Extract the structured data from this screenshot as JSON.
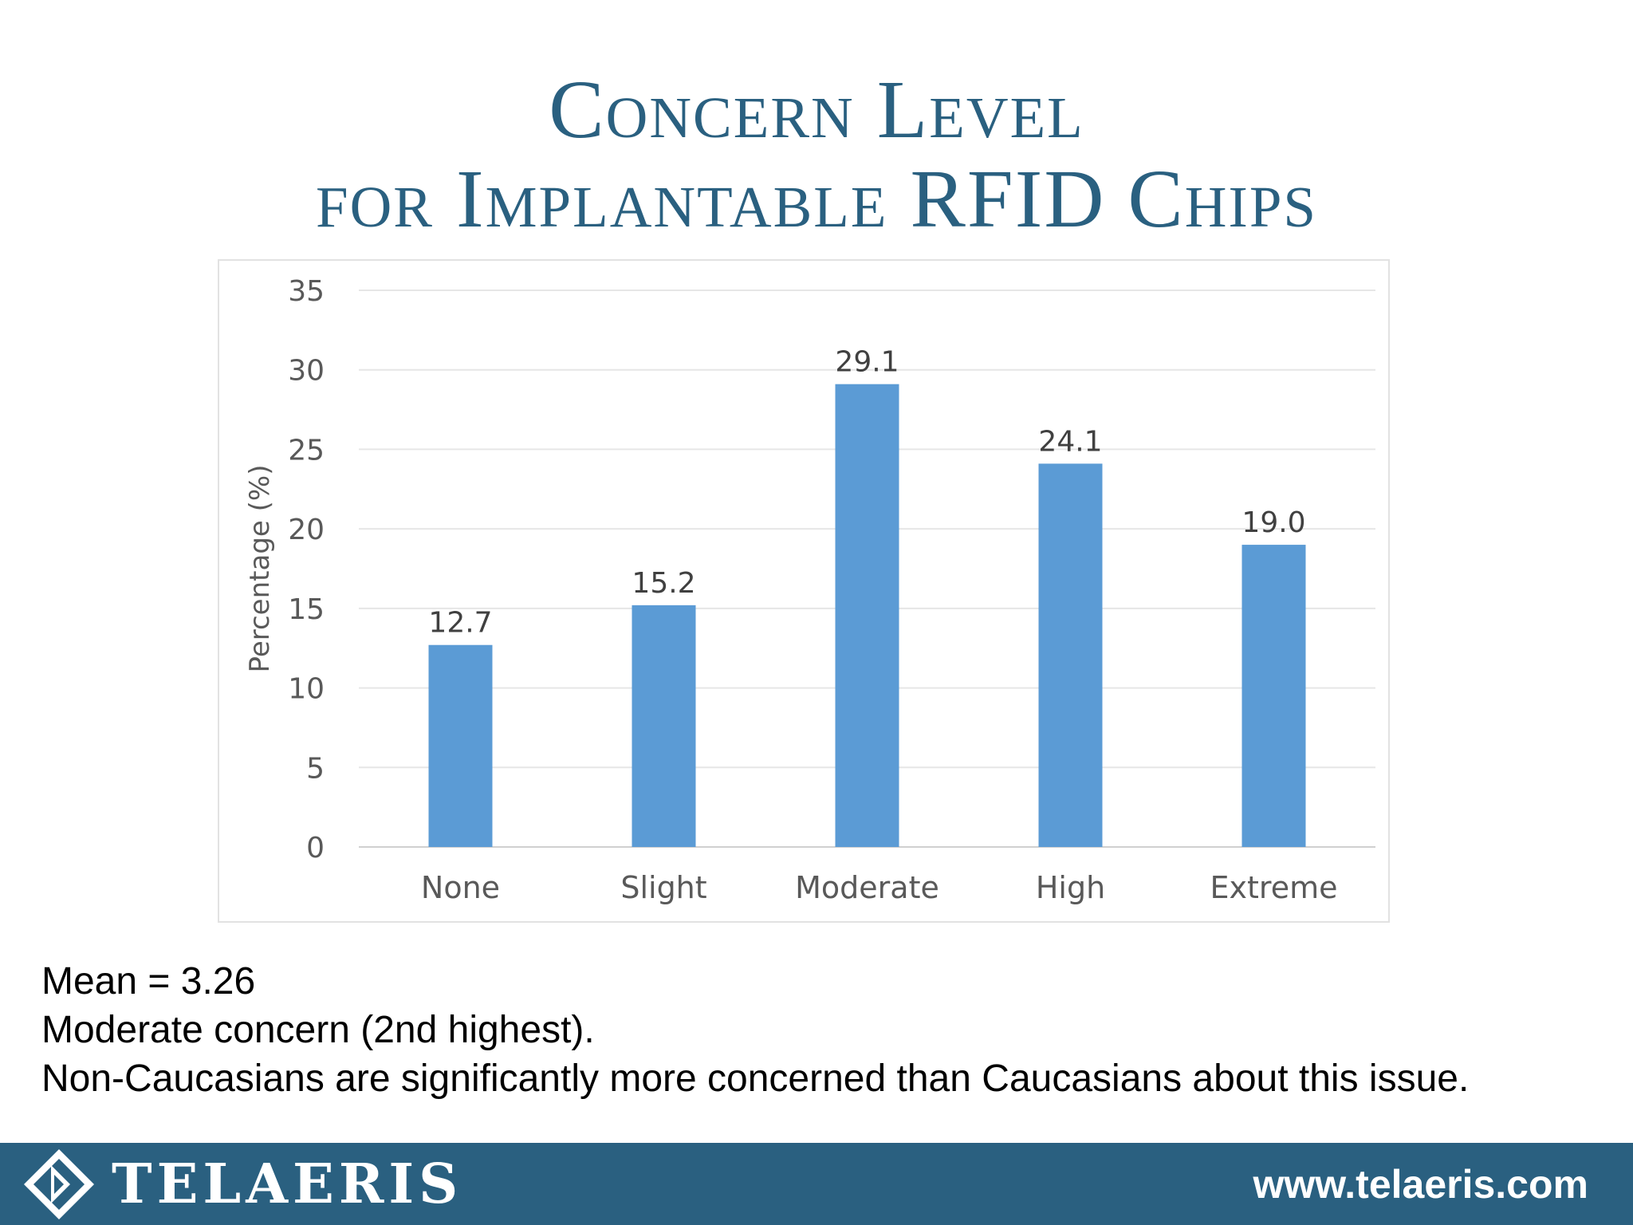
{
  "slide": {
    "title_line1": "Concern Level",
    "title_line2": "for Implantable RFID Chips",
    "title_color": "#2a6080"
  },
  "notes": {
    "mean": "Mean = 3.26",
    "line2": "Moderate concern (2nd highest).",
    "line3": "Non-Caucasians are significantly more concerned than Caucasians about this issue."
  },
  "footer": {
    "brand": "TELAERIS",
    "website": "www.telaeris.com",
    "logo_icon": "diamond-logo-icon",
    "background_color": "#2a6080"
  },
  "chart_data": {
    "type": "bar",
    "title": "",
    "xlabel": "",
    "ylabel": "Percentage (%)",
    "categories": [
      "None",
      "Slight",
      "Moderate",
      "High",
      "Extreme"
    ],
    "values": [
      12.7,
      15.2,
      29.1,
      24.1,
      19.0
    ],
    "data_labels": [
      "12.7",
      "15.2",
      "29.1",
      "24.1",
      "19.0"
    ],
    "ylim": [
      0,
      35
    ],
    "yticks": [
      0,
      5,
      10,
      15,
      20,
      25,
      30,
      35
    ],
    "grid": true,
    "legend": "none",
    "bar_color": "#5b9bd5"
  }
}
